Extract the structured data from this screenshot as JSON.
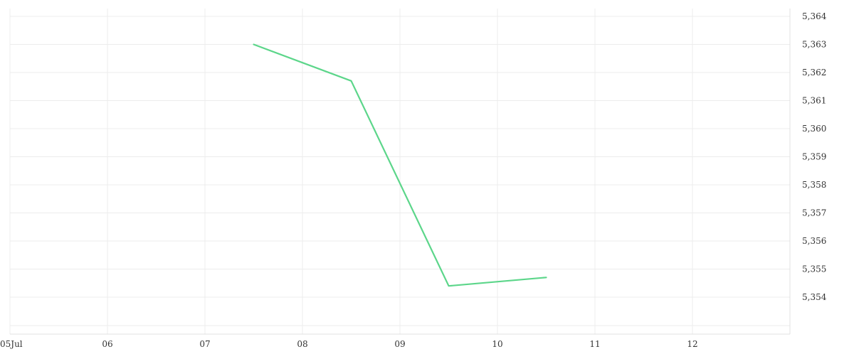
{
  "chart_data": {
    "type": "line",
    "title": "",
    "xlabel": "",
    "ylabel": "",
    "x_tick_labels": [
      "05Jul",
      "06",
      "07",
      "08",
      "09",
      "10",
      "11",
      "12"
    ],
    "y_tick_labels": [
      "5,364",
      "5,363",
      "5,362",
      "5,361",
      "5,360",
      "5,359",
      "5,358",
      "5,357",
      "5,356",
      "5,355",
      "5,354"
    ],
    "y_ticks": [
      5.364,
      5.363,
      5.362,
      5.361,
      5.36,
      5.359,
      5.358,
      5.357,
      5.356,
      5.355,
      5.354
    ],
    "x_range": [
      "2024-07-05",
      "2024-07-13"
    ],
    "ylim": [
      5.353,
      5.3643
    ],
    "grid": true,
    "series": [
      {
        "color": "#5cd68a",
        "x": [
          "2024-07-07 12:00",
          "2024-07-08 12:00",
          "2024-07-09 12:00",
          "2024-07-10 12:00"
        ],
        "values": [
          5.363,
          5.3617,
          5.3544,
          5.3547
        ]
      }
    ]
  }
}
